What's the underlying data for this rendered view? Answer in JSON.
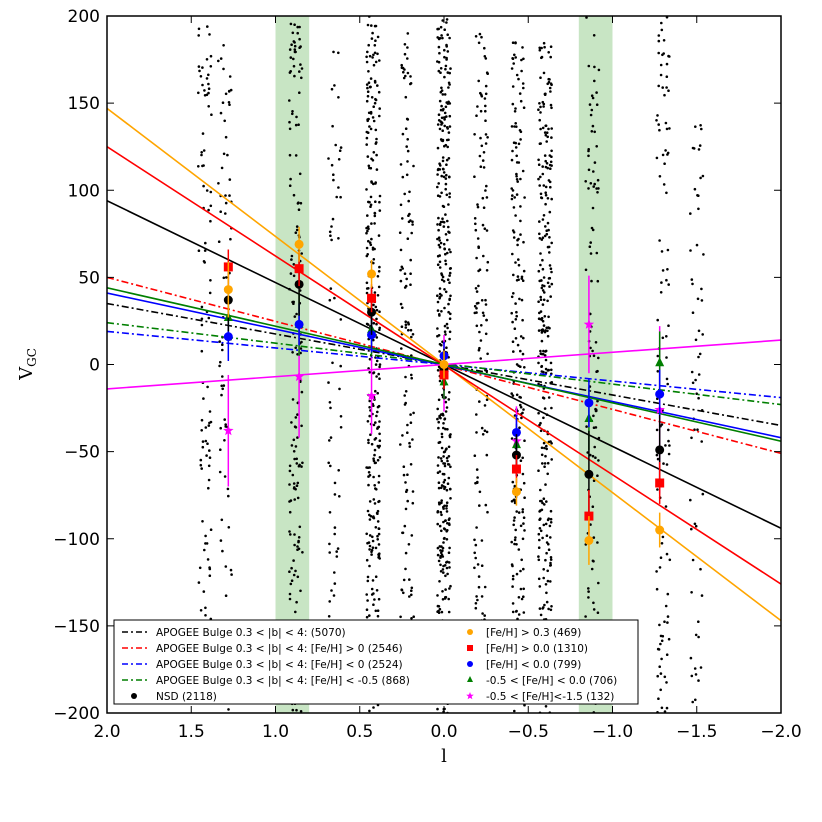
{
  "chart_data": {
    "type": "scatter",
    "xlabel": "l",
    "ylabel": "V",
    "ylabel_sub": "GC",
    "xlim": [
      2.0,
      -2.0
    ],
    "ylim": [
      -200,
      200
    ],
    "x_ticks": [
      2.0,
      1.5,
      1.0,
      0.5,
      0.0,
      -0.5,
      -1.0,
      -1.5,
      -2.0
    ],
    "x_tick_labels": [
      "2.0",
      "1.5",
      "1.0",
      "0.5",
      "0.0",
      "−0.5",
      "−1.0",
      "−1.5",
      "−2.0"
    ],
    "y_ticks": [
      200,
      150,
      100,
      50,
      0,
      -50,
      -100,
      -150,
      -200
    ],
    "y_tick_labels": [
      "200",
      "150",
      "100",
      "50",
      "0",
      "−50",
      "−100",
      "−150",
      "−200"
    ],
    "shaded_regions": [
      {
        "x_from": 1.0,
        "x_to": 0.8,
        "color": "#b5dcb0"
      },
      {
        "x_from": -0.8,
        "x_to": -1.0,
        "color": "#b5dcb0"
      }
    ],
    "background_stars": {
      "columns": [
        {
          "x": 1.42,
          "vmin": -150,
          "vmax": 195,
          "n": 90
        },
        {
          "x": 1.3,
          "vmin": -200,
          "vmax": 200,
          "n": 80
        },
        {
          "x": 0.88,
          "vmin": -200,
          "vmax": 200,
          "n": 170
        },
        {
          "x": 0.65,
          "vmin": -180,
          "vmax": 190,
          "n": 60
        },
        {
          "x": 0.42,
          "vmin": -200,
          "vmax": 200,
          "n": 320
        },
        {
          "x": 0.22,
          "vmin": -170,
          "vmax": 190,
          "n": 130
        },
        {
          "x": 0.0,
          "vmin": -200,
          "vmax": 200,
          "n": 430
        },
        {
          "x": -0.22,
          "vmin": -170,
          "vmax": 190,
          "n": 130
        },
        {
          "x": -0.44,
          "vmin": -200,
          "vmax": 185,
          "n": 220
        },
        {
          "x": -0.6,
          "vmin": -200,
          "vmax": 185,
          "n": 300
        },
        {
          "x": -0.88,
          "vmin": -200,
          "vmax": 200,
          "n": 110
        },
        {
          "x": -1.3,
          "vmin": -200,
          "vmax": 200,
          "n": 110
        },
        {
          "x": -1.5,
          "vmin": -200,
          "vmax": 150,
          "n": 60
        }
      ]
    },
    "lines": [
      {
        "name": "APOGEE Bulge 0.3 < |b| < 4:  (5070)",
        "color": "#000000",
        "style": "dashdot",
        "x": [
          2.0,
          -2.0
        ],
        "y": [
          35,
          -35
        ]
      },
      {
        "name": "APOGEE Bulge 0.3 < |b| < 4:  [Fe/H] > 0  (2546)",
        "color": "#ff0000",
        "style": "dashdot",
        "x": [
          2.0,
          -2.0
        ],
        "y": [
          50,
          -51
        ]
      },
      {
        "name": "APOGEE Bulge 0.3 < |b| < 4: [Fe/H] < 0  (2524)",
        "color": "#0000ff",
        "style": "dashdot",
        "x": [
          2.0,
          -2.0
        ],
        "y": [
          19,
          -19
        ]
      },
      {
        "name": "APOGEE Bulge 0.3 < |b| < 4: [Fe/H] < -0.5  (868)",
        "color": "#007f00",
        "style": "dashdot",
        "x": [
          2.0,
          -2.0
        ],
        "y": [
          24,
          -23
        ]
      },
      {
        "name": "fit NSD",
        "color": "#000000",
        "style": "solid",
        "x": [
          2.0,
          -2.0
        ],
        "y": [
          94,
          -94
        ]
      },
      {
        "name": "fit [Fe/H] > 0.3",
        "color": "#ffa500",
        "style": "solid",
        "x": [
          2.0,
          -2.0
        ],
        "y": [
          147,
          -147
        ]
      },
      {
        "name": "fit [Fe/H] > 0.0",
        "color": "#ff0000",
        "style": "solid",
        "x": [
          2.0,
          -2.0
        ],
        "y": [
          125,
          -126
        ]
      },
      {
        "name": "fit [Fe/H] < 0.0",
        "color": "#0000ff",
        "style": "solid",
        "x": [
          2.0,
          -2.0
        ],
        "y": [
          41,
          -42
        ]
      },
      {
        "name": "fit -0.5 < [Fe/H] < 0.0",
        "color": "#007f00",
        "style": "solid",
        "x": [
          2.0,
          -2.0
        ],
        "y": [
          44,
          -44
        ]
      },
      {
        "name": "fit -0.5 < [Fe/H] < -1.5",
        "color": "#ff00ff",
        "style": "solid",
        "x": [
          2.0,
          -2.0
        ],
        "y": [
          -14,
          14
        ]
      }
    ],
    "series": [
      {
        "name": "NSD (2118)",
        "color": "#000000",
        "marker": "circle",
        "x": [
          1.28,
          0.86,
          0.43,
          0.0,
          -0.43,
          -0.86,
          -1.28
        ],
        "y": [
          37,
          46,
          30,
          -3,
          -52,
          -63,
          -49
        ],
        "err": [
          18,
          18,
          13,
          12,
          12,
          25,
          20
        ]
      },
      {
        "name": "[Fe/H] > 0.3 (469)",
        "color": "#ffa500",
        "marker": "circle",
        "x": [
          1.28,
          0.86,
          0.43,
          0.0,
          -0.43,
          -0.86,
          -1.28
        ],
        "y": [
          43,
          69,
          52,
          0,
          -73,
          -101,
          -95
        ],
        "err": [
          16,
          10,
          8,
          8,
          8,
          14,
          10
        ]
      },
      {
        "name": "[Fe/H] > 0.0 (1310)",
        "color": "#ff0000",
        "marker": "square",
        "x": [
          1.28,
          0.86,
          0.43,
          0.0,
          -0.43,
          -0.86,
          -1.28
        ],
        "y": [
          56,
          55,
          38,
          -6,
          -60,
          -87,
          -68
        ],
        "err": [
          10,
          10,
          8,
          8,
          8,
          15,
          12
        ]
      },
      {
        "name": "[Fe/H] < 0.0 (799)",
        "color": "#0000ff",
        "marker": "circle",
        "x": [
          1.28,
          0.86,
          0.43,
          0.0,
          -0.43,
          -0.86,
          -1.28
        ],
        "y": [
          16,
          23,
          17,
          5,
          -39,
          -22,
          -17
        ],
        "err": [
          14,
          12,
          10,
          8,
          10,
          14,
          14
        ]
      },
      {
        "name": "-0.5 < [Fe/H] < 0.0  (706)",
        "color": "#007f00",
        "marker": "triangle",
        "x": [
          1.28,
          0.86,
          0.43,
          0.0,
          -0.43,
          -0.86,
          -1.28
        ],
        "y": [
          27,
          23,
          20,
          -10,
          -46,
          -31,
          1
        ],
        "err": [
          14,
          18,
          14,
          10,
          12,
          18,
          18
        ]
      },
      {
        "name": "-0.5 < [Fe/H]<-1.5 (132)",
        "color": "#ff00ff",
        "marker": "star",
        "x": [
          1.28,
          0.86,
          0.43,
          0.0,
          -0.43,
          -0.86,
          -1.28
        ],
        "y": [
          -38,
          -7,
          -18,
          -5,
          -44,
          23,
          -26
        ],
        "err": [
          32,
          35,
          22,
          22,
          20,
          28,
          48
        ]
      }
    ],
    "legend": {
      "placement": "bottom",
      "left_column": [
        {
          "label": "APOGEE Bulge 0.3 < |b| < 4:  (5070)",
          "color": "#000000",
          "symbol": "dashdot"
        },
        {
          "label": "APOGEE Bulge 0.3 < |b| < 4:  [Fe/H] > 0  (2546)",
          "color": "#ff0000",
          "symbol": "dashdot"
        },
        {
          "label": "APOGEE Bulge 0.3 < |b| < 4: [Fe/H] < 0  (2524)",
          "color": "#0000ff",
          "symbol": "dashdot"
        },
        {
          "label": "APOGEE Bulge 0.3 < |b| < 4: [Fe/H] < -0.5  (868)",
          "color": "#007f00",
          "symbol": "dashdot"
        },
        {
          "label": "NSD (2118)",
          "color": "#000000",
          "symbol": "circle"
        }
      ],
      "right_column": [
        {
          "label": "[Fe/H] > 0.3 (469)",
          "color": "#ffa500",
          "symbol": "circle"
        },
        {
          "label": "[Fe/H] > 0.0 (1310)",
          "color": "#ff0000",
          "symbol": "square"
        },
        {
          "label": "[Fe/H] < 0.0  (799)",
          "color": "#0000ff",
          "symbol": "circle"
        },
        {
          "label": "-0.5 < [Fe/H] < 0.0  (706)",
          "color": "#007f00",
          "symbol": "triangle"
        },
        {
          "label": "-0.5 < [Fe/H]<-1.5 (132)",
          "color": "#ff00ff",
          "symbol": "star"
        }
      ]
    }
  }
}
